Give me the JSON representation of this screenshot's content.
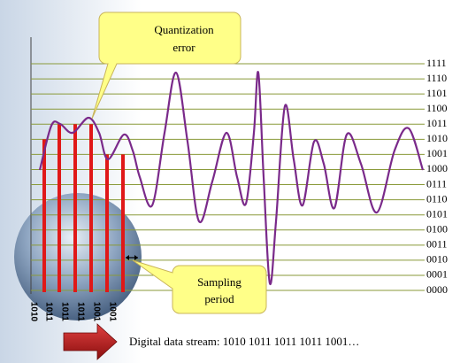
{
  "callouts": {
    "quantization_error": [
      "Quantization",
      "error"
    ],
    "sampling_period": [
      "Sampling",
      "period"
    ]
  },
  "levels": [
    "1111",
    "1110",
    "1101",
    "1100",
    "1011",
    "1010",
    "1001",
    "1000",
    "0111",
    "0110",
    "0101",
    "0100",
    "0011",
    "0010",
    "0001",
    "0000"
  ],
  "samples": [
    "1010",
    "1011",
    "1011",
    "1011",
    "1001",
    "1001"
  ],
  "footer": "Digital data stream: 1010 1011 1011 1011 1001…"
}
